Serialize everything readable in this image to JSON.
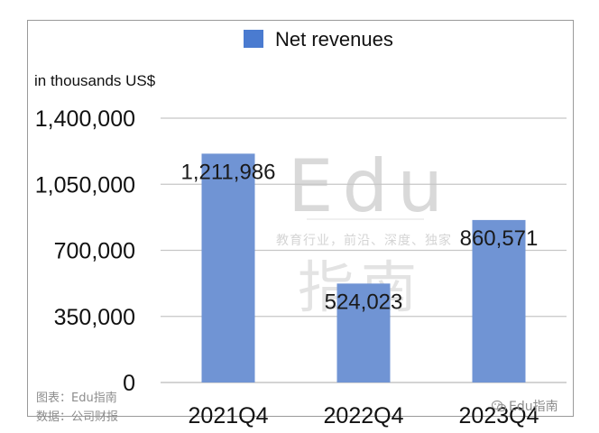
{
  "chart_data": {
    "type": "bar",
    "title": "",
    "legend": [
      "Net revenues"
    ],
    "legend_position": "top-center",
    "ylabel": "in thousands US$",
    "xlabel": "",
    "categories": [
      "2021Q4",
      "2022Q4",
      "2023Q4"
    ],
    "series": [
      {
        "name": "Net revenues",
        "values": [
          1211986,
          524023,
          860571
        ]
      }
    ],
    "data_labels": [
      "1,211,986",
      "524,023",
      "860,571"
    ],
    "ylim": [
      0,
      1400000
    ],
    "yticks": [
      0,
      350000,
      700000,
      1050000,
      1400000
    ],
    "ytick_labels": [
      "0",
      "350,000",
      "700,000",
      "1,050,000",
      "1,400,000"
    ],
    "grid": true,
    "colors": {
      "bar": "#7094d4",
      "grid": "#c6c6c6",
      "text": "#111111"
    }
  },
  "watermark": {
    "big": "Edu",
    "cn": "指南",
    "slogan": "教育行业，前沿、深度、独家"
  },
  "footer": {
    "chart_credit": "图表：Edu指南",
    "data_source": "数据：公司财报",
    "brand": "Edu指南",
    "brand_icon": "wechat-icon"
  }
}
